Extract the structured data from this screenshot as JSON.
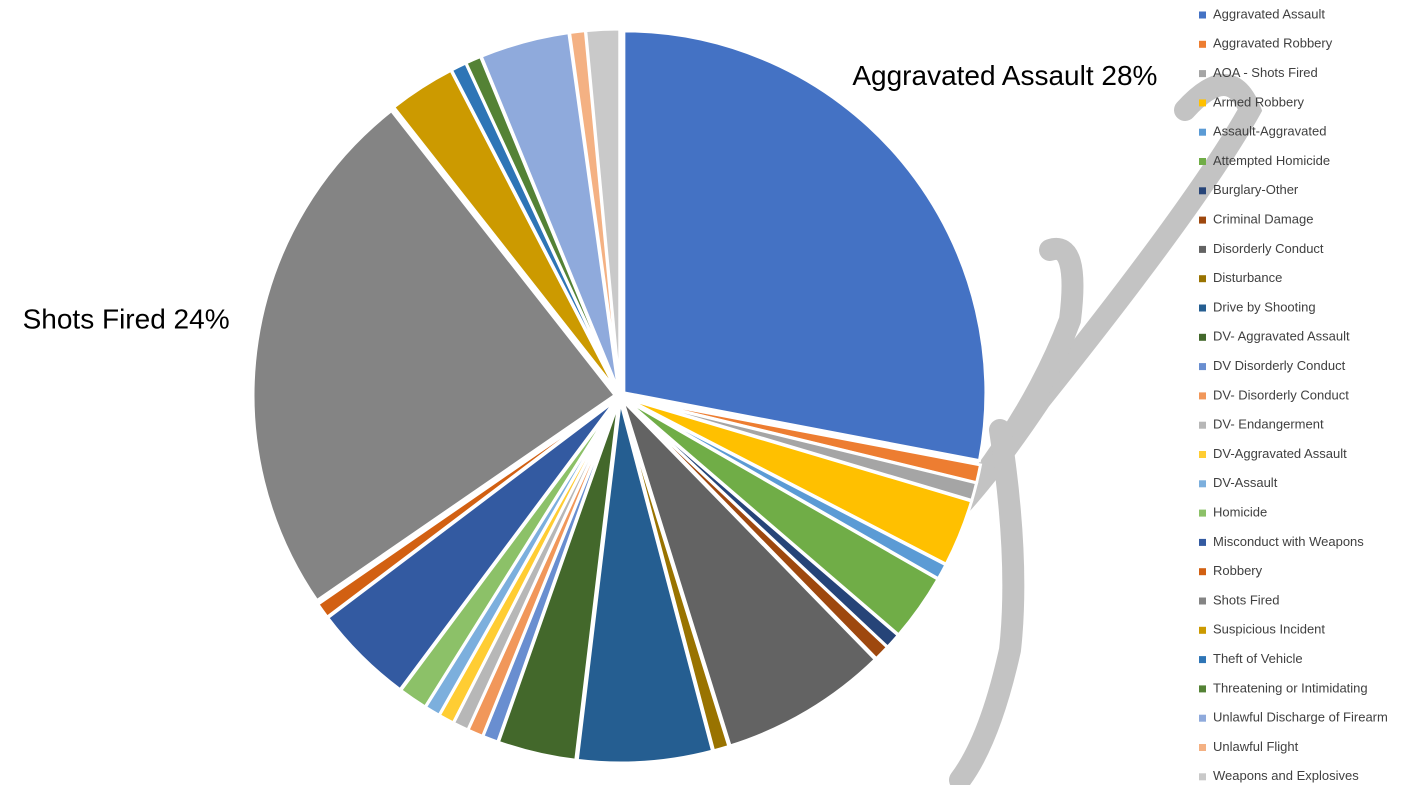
{
  "chart_data": {
    "type": "pie",
    "categories": [
      "Aggravated Assault",
      "Aggravated Robbery",
      "AOA - Shots Fired",
      "Armed Robbery",
      "Assault-Aggravated",
      "Attempted Homicide",
      "Burglary-Other",
      "Criminal Damage",
      "Disorderly Conduct",
      "Disturbance",
      "Drive by Shooting",
      "DV- Aggravated Assault",
      "DV Disorderly Conduct",
      "DV- Disorderly Conduct",
      "DV- Endangerment",
      "DV-Aggravated Assault",
      "DV-Assault",
      "Homicide",
      "Misconduct with Weapons",
      "Robbery",
      "Shots Fired",
      "Suspicious Incident",
      "Theft of Vehicle",
      "Threatening or Intimidating",
      "Unlawful Discharge of Firearm",
      "Unlawful Flight",
      "Weapons and Explosives"
    ],
    "values": [
      28,
      0.8,
      0.8,
      3,
      0.7,
      3,
      0.7,
      0.7,
      7.5,
      0.7,
      6,
      3.5,
      0.7,
      0.7,
      0.7,
      0.7,
      0.7,
      1.3,
      4.5,
      0.7,
      24,
      3,
      0.7,
      0.7,
      4,
      0.7,
      1.5
    ],
    "value_labels": [
      "Aggravated Assault 28%",
      null,
      null,
      null,
      null,
      null,
      null,
      null,
      null,
      null,
      null,
      null,
      null,
      null,
      null,
      null,
      null,
      null,
      null,
      null,
      "Shots Fired 24%",
      null,
      null,
      null,
      null,
      null,
      null
    ],
    "colors": [
      "#4472c4",
      "#ed7d31",
      "#a5a5a5",
      "#ffc000",
      "#5b9bd5",
      "#70ad47",
      "#264478",
      "#9e480e",
      "#636363",
      "#997300",
      "#255e91",
      "#43682b",
      "#698ed0",
      "#f1975a",
      "#b7b7b7",
      "#ffcd33",
      "#7cafdd",
      "#8cc168",
      "#335aa1",
      "#d26012",
      "#848484",
      "#cc9a00",
      "#2e75b6",
      "#548235",
      "#8faadc",
      "#f4b183",
      "#c9c9c9"
    ],
    "legend": "right"
  }
}
